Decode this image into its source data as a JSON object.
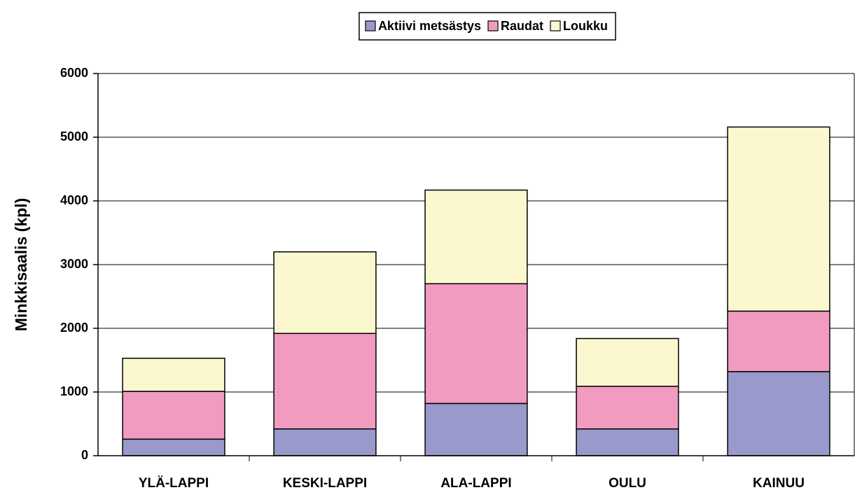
{
  "chart_data": {
    "type": "stacked_bar",
    "y_label": "Minkkisaalis (kpl)",
    "categories": [
      "YLÄ-LAPPI",
      "KESKI-LAPPI",
      "ALA-LAPPI",
      "OULU",
      "KAINUU"
    ],
    "series": [
      {
        "name": "Aktiivi metsästys",
        "color": "#9999cc",
        "values": [
          260,
          420,
          820,
          420,
          1320
        ]
      },
      {
        "name": "Raudat",
        "color": "#f29bc0",
        "values": [
          750,
          1500,
          1880,
          670,
          950
        ]
      },
      {
        "name": "Loukku",
        "color": "#fbf8d0",
        "values": [
          520,
          1280,
          1470,
          750,
          2890
        ]
      }
    ],
    "ylim": [
      0,
      6000
    ],
    "yticks": [
      0,
      1000,
      2000,
      3000,
      4000,
      5000,
      6000
    ],
    "grid": true,
    "legend": "top"
  }
}
